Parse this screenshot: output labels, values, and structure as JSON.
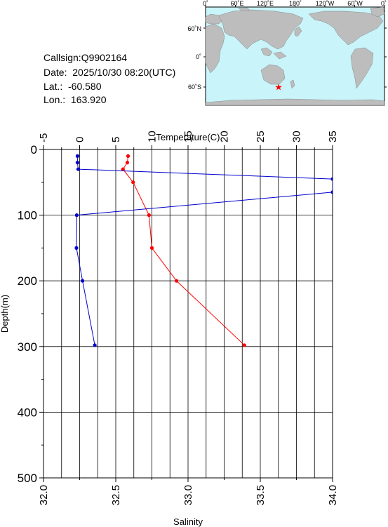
{
  "station": {
    "callsign_text": "Callsign:Q9902164",
    "date_text": "Date:  2025/10/30 08:20(UTC)",
    "lat_text": "Lat.:  -60.580",
    "lon_text": "Lon.:  163.920",
    "marker_symbol": "★",
    "marker_color": "#ff0000"
  },
  "map": {
    "top_ticks": [
      "0˚",
      "60˚E",
      "120˚E",
      "180˚",
      "120˚W",
      "60˚W",
      "0˚"
    ],
    "side_ticks": [
      "60˚N",
      "0˚",
      "60˚S"
    ],
    "ocean_color": "#c8f4fa",
    "land_color": "#bdbdbd",
    "station_lon": 163.92,
    "station_lat": -60.58
  },
  "chart_data": {
    "type": "line",
    "title": "",
    "xlabel_top": "Temperature(C)",
    "xlabel_bottom": "Salinity",
    "ylabel": "Depth(m)",
    "xlim_temperature": [
      -5,
      35
    ],
    "xlim_salinity": [
      32.0,
      34.0
    ],
    "ylim_depth": [
      0,
      500
    ],
    "y_inverted": true,
    "grid": true,
    "temperature_ticks": [
      "-5",
      "0",
      "5",
      "10",
      "15",
      "20",
      "25",
      "30",
      "35"
    ],
    "salinity_ticks": [
      "32.0",
      "32.5",
      "33.0",
      "33.5",
      "34.0"
    ],
    "depth_ticks": [
      "0",
      "100",
      "200",
      "300",
      "400",
      "500"
    ],
    "series": [
      {
        "quantity": "temperature",
        "color": "#ff0000",
        "depth": [
          10,
          20,
          30,
          50,
          100,
          150,
          200,
          298
        ],
        "values": [
          6.7,
          6.6,
          6.0,
          7.4,
          9.6,
          10.0,
          13.4,
          22.8
        ]
      },
      {
        "quantity": "salinity",
        "color": "#0000cc",
        "depth": [
          10,
          20,
          30,
          45,
          65,
          100,
          150,
          200,
          298
        ],
        "values": [
          32.235,
          32.235,
          32.24,
          34.0,
          34.0,
          32.23,
          32.228,
          32.27,
          32.355
        ]
      }
    ]
  }
}
